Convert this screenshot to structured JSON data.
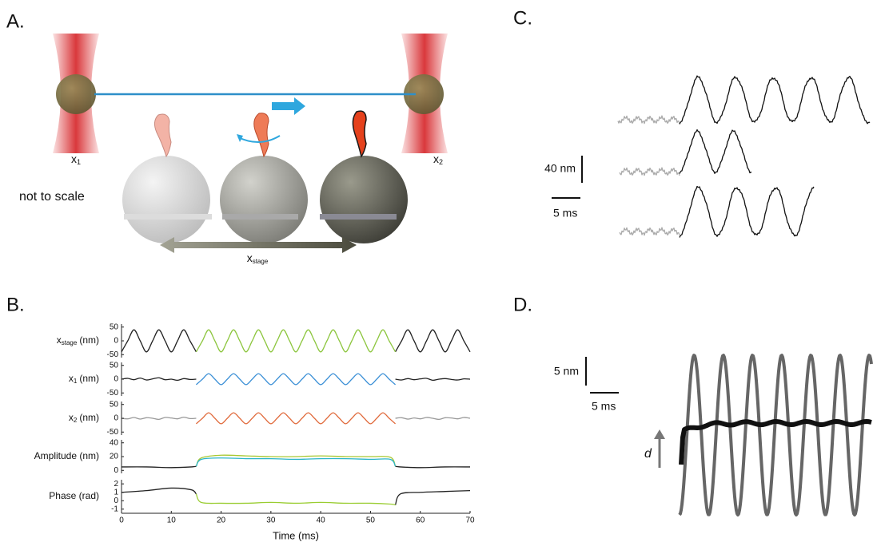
{
  "panel_a": {
    "label": "A.",
    "x1": {
      "text": "x",
      "sub": "1"
    },
    "x2": {
      "text": "x",
      "sub": "2"
    },
    "note": "not to scale",
    "x_stage": {
      "text": "x",
      "sub": "stage"
    }
  },
  "panel_b": {
    "label": "B.",
    "type": "line",
    "xlim": [
      0,
      70
    ],
    "xticks": [
      0,
      10,
      20,
      30,
      40,
      50,
      60,
      70
    ],
    "xlabel": "Time (ms)",
    "x": [
      0,
      1.25,
      2.5,
      3.75,
      5,
      6.25,
      7.5,
      8.75,
      10,
      11.25,
      12.5,
      13.75,
      15,
      16.25,
      17.5,
      18.75,
      20,
      21.25,
      22.5,
      23.75,
      25,
      26.25,
      27.5,
      28.75,
      30,
      31.25,
      32.5,
      33.75,
      35,
      36.25,
      37.5,
      38.75,
      40,
      41.25,
      42.5,
      43.75,
      45,
      46.25,
      47.5,
      48.75,
      50,
      51.25,
      52.5,
      53.75,
      55,
      56.25,
      57.5,
      58.75,
      60,
      61.25,
      62.5,
      63.75,
      65,
      66.25,
      67.5,
      68.75,
      70
    ],
    "subplots": [
      {
        "ylabel": {
          "text": "x",
          "sub": "stage",
          "unit": "(nm)"
        },
        "ylim": [
          -55,
          55
        ],
        "yticks": [
          -50,
          0,
          50
        ],
        "series": [
          {
            "color": "#222222",
            "values": [
              -40,
              0,
              40,
              0,
              -40,
              0,
              40,
              0,
              -40,
              0,
              40,
              0,
              -40,
              null,
              null,
              null,
              null,
              null,
              null,
              null,
              null,
              null,
              null,
              null,
              null,
              null,
              null,
              null,
              null,
              null,
              null,
              null,
              null,
              null,
              null,
              null,
              null,
              null,
              null,
              null,
              null,
              null,
              null,
              null,
              -40,
              0,
              40,
              0,
              -40,
              0,
              40,
              0,
              -40,
              0,
              40,
              0,
              -40
            ]
          },
          {
            "color": "#8dc63f",
            "values": [
              null,
              null,
              null,
              null,
              null,
              null,
              null,
              null,
              null,
              null,
              null,
              null,
              -40,
              0,
              40,
              0,
              -40,
              0,
              40,
              0,
              -40,
              0,
              40,
              0,
              -40,
              0,
              40,
              0,
              -40,
              0,
              40,
              0,
              -40,
              0,
              40,
              0,
              -40,
              0,
              40,
              0,
              -40,
              0,
              40,
              0,
              -40,
              null,
              null,
              null,
              null,
              null,
              null,
              null,
              null,
              null,
              null,
              null,
              null
            ]
          }
        ]
      },
      {
        "ylabel": {
          "text": "x",
          "sub": "1",
          "unit": "(nm)"
        },
        "ylim": [
          -55,
          55
        ],
        "yticks": [
          -50,
          0,
          50
        ],
        "series": [
          {
            "color": "#222222",
            "values": [
              0,
              3,
              -2,
              4,
              -3,
              1,
              5,
              -2,
              0,
              -4,
              2,
              -1,
              0,
              null,
              null,
              null,
              null,
              null,
              null,
              null,
              null,
              null,
              null,
              null,
              null,
              null,
              null,
              null,
              null,
              null,
              null,
              null,
              null,
              null,
              null,
              null,
              null,
              null,
              null,
              null,
              null,
              null,
              null,
              null,
              0,
              -3,
              2,
              -2,
              1,
              3,
              -4,
              0,
              2,
              -1,
              -3,
              1,
              0
            ]
          },
          {
            "color": "#3a8fd6",
            "values": [
              null,
              null,
              null,
              null,
              null,
              null,
              null,
              null,
              null,
              null,
              null,
              null,
              -20,
              0,
              20,
              0,
              -20,
              0,
              20,
              0,
              -20,
              0,
              20,
              0,
              -20,
              0,
              20,
              0,
              -20,
              0,
              20,
              0,
              -20,
              0,
              20,
              0,
              -20,
              0,
              20,
              0,
              -20,
              0,
              20,
              0,
              -20,
              null,
              null,
              null,
              null,
              null,
              null,
              null,
              null,
              null,
              null,
              null,
              null
            ]
          }
        ]
      },
      {
        "ylabel": {
          "text": "x",
          "sub": "2",
          "unit": "(nm)"
        },
        "ylim": [
          -55,
          55
        ],
        "yticks": [
          -50,
          0,
          50
        ],
        "series": [
          {
            "color": "#999999",
            "values": [
              0,
              -2,
              3,
              -3,
              2,
              0,
              -4,
              3,
              1,
              -2,
              4,
              -1,
              0,
              null,
              null,
              null,
              null,
              null,
              null,
              null,
              null,
              null,
              null,
              null,
              null,
              null,
              null,
              null,
              null,
              null,
              null,
              null,
              null,
              null,
              null,
              null,
              null,
              null,
              null,
              null,
              null,
              null,
              null,
              null,
              0,
              2,
              -3,
              1,
              -2,
              3,
              0,
              -4,
              2,
              1,
              -2,
              3,
              0
            ]
          },
          {
            "color": "#e0693a",
            "values": [
              null,
              null,
              null,
              null,
              null,
              null,
              null,
              null,
              null,
              null,
              null,
              null,
              -20,
              0,
              20,
              0,
              -20,
              0,
              20,
              0,
              -20,
              0,
              20,
              0,
              -20,
              0,
              20,
              0,
              -20,
              0,
              20,
              0,
              -20,
              0,
              20,
              0,
              -20,
              0,
              20,
              0,
              -20,
              0,
              20,
              0,
              -20,
              null,
              null,
              null,
              null,
              null,
              null,
              null,
              null,
              null,
              null,
              null,
              null
            ]
          }
        ]
      },
      {
        "ylabel": "Amplitude (nm)",
        "ylim": [
          -2,
          42
        ],
        "yticks": [
          0,
          20,
          40
        ],
        "x": [
          0,
          5,
          10,
          14,
          15,
          16,
          20,
          25,
          30,
          35,
          40,
          45,
          50,
          54,
          55,
          56,
          60,
          65,
          70
        ],
        "series": [
          {
            "color": "#222222",
            "values": [
              5,
              5,
              4,
              5,
              6,
              null,
              null,
              null,
              null,
              null,
              null,
              null,
              null,
              null,
              6,
              5,
              4,
              5,
              5
            ]
          },
          {
            "color": "#a8c832",
            "values": [
              null,
              null,
              null,
              null,
              6,
              18,
              22,
              21,
              20,
              20,
              21,
              20,
              20,
              19,
              6,
              null,
              null,
              null,
              null
            ]
          },
          {
            "color": "#2bb5c9",
            "values": [
              null,
              null,
              null,
              null,
              6,
              16,
              18,
              17,
              17,
              16,
              17,
              17,
              16,
              16,
              6,
              null,
              null,
              null,
              null
            ]
          }
        ]
      },
      {
        "ylabel": "Phase (rad)",
        "ylim": [
          -1.3,
          2.3
        ],
        "yticks": [
          -1,
          0,
          1,
          2
        ],
        "x": [
          0,
          5,
          10,
          14,
          15,
          16,
          20,
          25,
          30,
          35,
          40,
          45,
          50,
          54,
          55,
          56,
          60,
          65,
          70
        ],
        "series": [
          {
            "color": "#222222",
            "values": [
              1,
              1.2,
              1.5,
              1.3,
              0.8,
              null,
              null,
              null,
              null,
              null,
              null,
              null,
              null,
              null,
              -0.5,
              0.8,
              1,
              1.1,
              1.2
            ]
          },
          {
            "color": "#9acd32",
            "values": [
              null,
              null,
              null,
              null,
              0.8,
              -0.2,
              -0.3,
              -0.3,
              -0.2,
              -0.3,
              -0.2,
              -0.3,
              -0.3,
              -0.4,
              -0.5,
              null,
              null,
              null,
              null
            ]
          }
        ]
      }
    ]
  },
  "panel_c": {
    "label": "C.",
    "scale_y": "40 nm",
    "scale_x": "5 ms"
  },
  "panel_d": {
    "label": "D.",
    "scale_y": "5 nm",
    "scale_x": "5 ms",
    "arrow_label": "d"
  }
}
